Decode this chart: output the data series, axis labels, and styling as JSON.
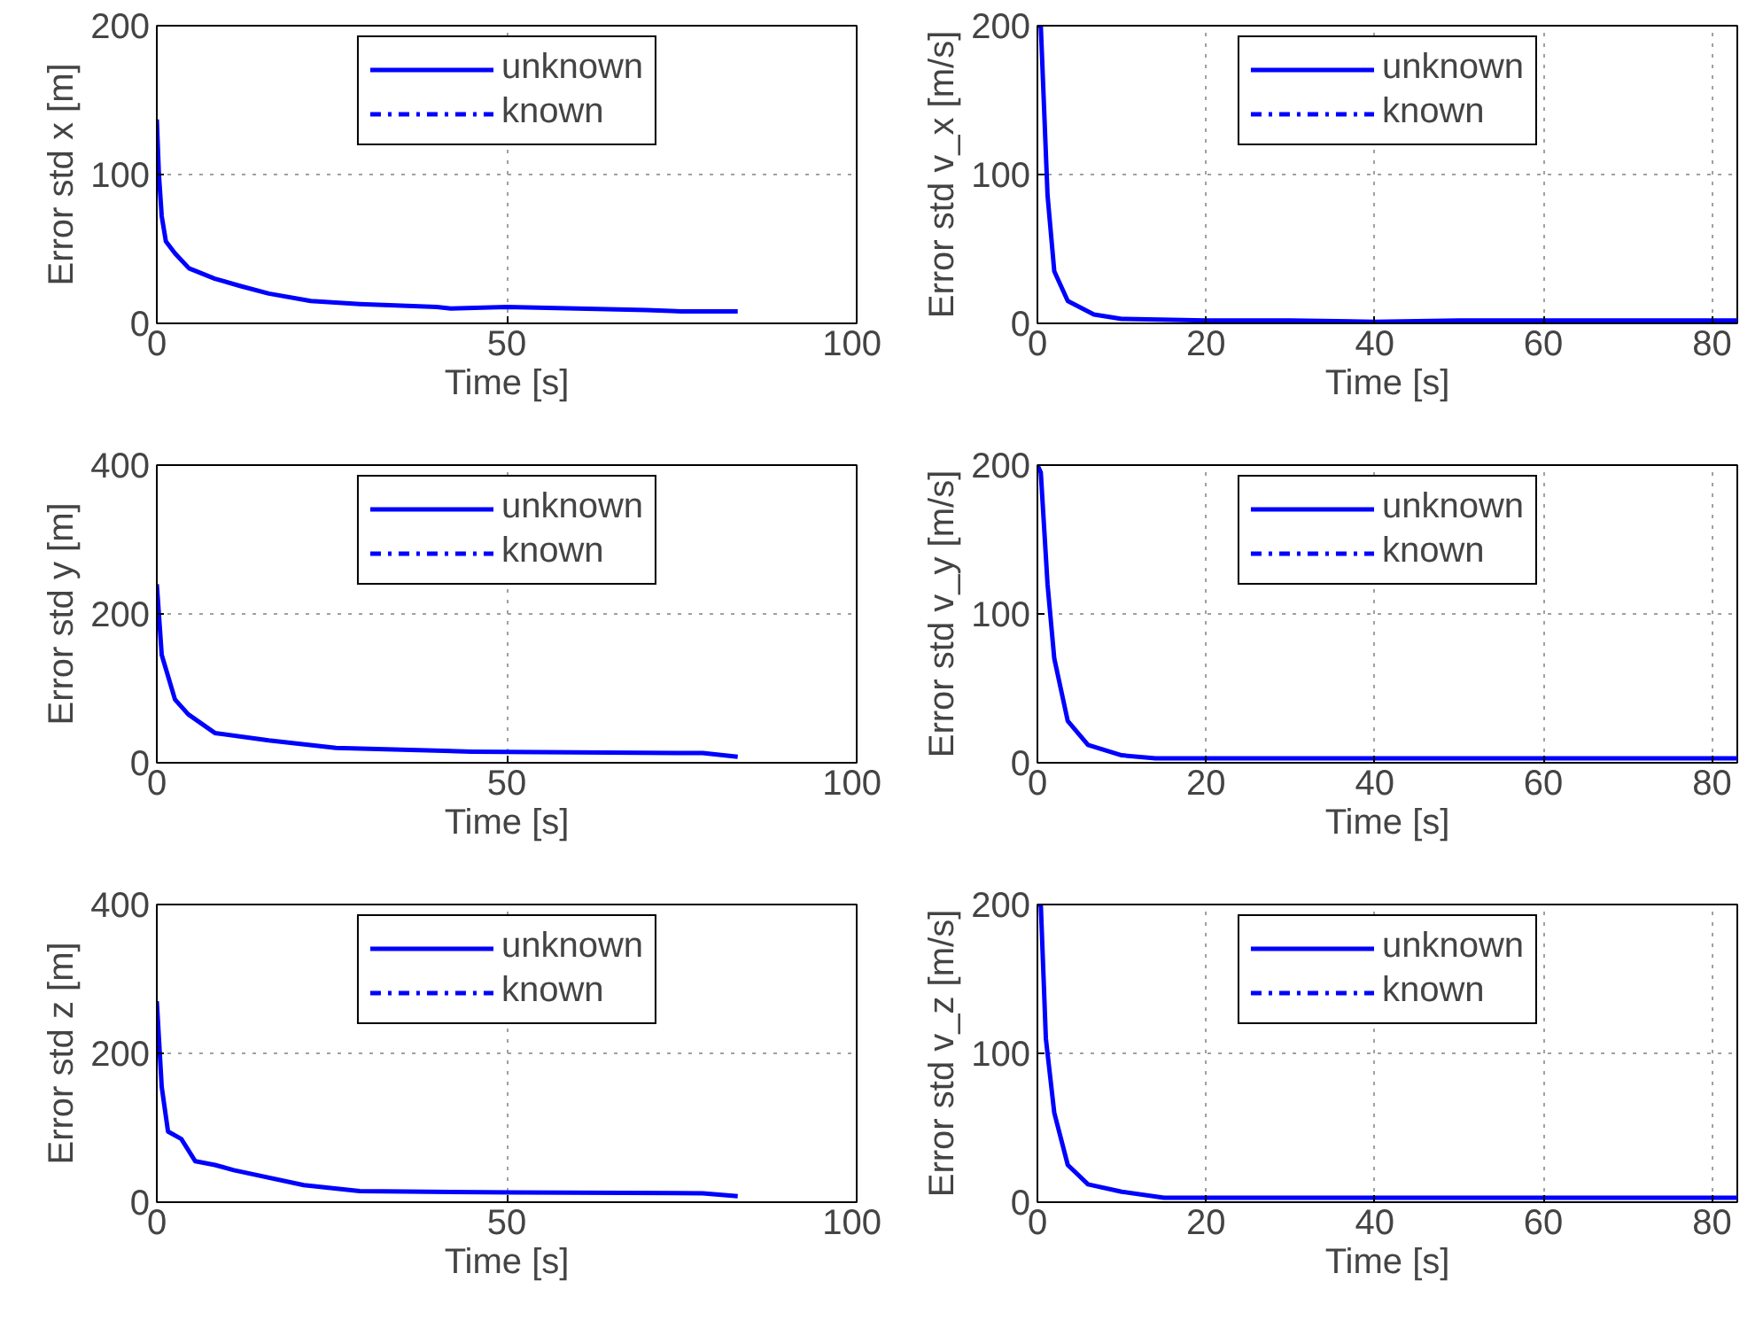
{
  "chart_data": [
    {
      "type": "line",
      "xlabel": "Time [s]",
      "ylabel": "Error std x [m]",
      "xlim": [
        0,
        100
      ],
      "xticks": [
        0,
        50,
        100
      ],
      "ylim": [
        0,
        200
      ],
      "yticks": [
        0,
        100,
        200
      ],
      "grid": true,
      "legend": "top",
      "x": [
        0,
        0.3,
        0.7,
        1.3,
        2.6,
        4.6,
        8.3,
        12,
        16,
        22,
        29,
        40,
        42,
        50,
        60,
        70,
        75,
        80,
        83
      ],
      "series": [
        {
          "name": "unknown",
          "color": "#0000ff",
          "line_style": "solid",
          "values": [
            137,
            100,
            72,
            55,
            47,
            37,
            30,
            25,
            20,
            15,
            13,
            11,
            10,
            11,
            10,
            9,
            8,
            8,
            8
          ]
        },
        {
          "name": "known",
          "color": "#0000ff",
          "line_style": "dashdot",
          "values": [
            null,
            null,
            null,
            null,
            null,
            null,
            null,
            null,
            null,
            null,
            null,
            null,
            null,
            null,
            null,
            null,
            null,
            null,
            null
          ]
        }
      ]
    },
    {
      "type": "line",
      "xlabel": "Time [s]",
      "ylabel": "Error std v_x [m/s]",
      "xlim": [
        0,
        83
      ],
      "xticks": [
        0,
        20,
        40,
        60,
        80
      ],
      "ylim": [
        0,
        200
      ],
      "yticks": [
        0,
        100,
        200
      ],
      "grid": true,
      "legend": "top",
      "x": [
        0,
        0.4,
        1.2,
        2,
        3.6,
        6.7,
        10,
        20,
        30,
        40,
        50,
        60,
        70,
        83
      ],
      "series": [
        {
          "name": "unknown",
          "color": "#0000ff",
          "line_style": "solid",
          "values": [
            200,
            200,
            86,
            35,
            15,
            6,
            3,
            2,
            2,
            1,
            2,
            2,
            2,
            2
          ]
        },
        {
          "name": "known",
          "color": "#0000ff",
          "line_style": "dashdot",
          "values": [
            null,
            null,
            null,
            null,
            null,
            null,
            null,
            null,
            null,
            null,
            null,
            null,
            null,
            null
          ]
        }
      ]
    },
    {
      "type": "line",
      "xlabel": "Time [s]",
      "ylabel": "Error std y [m]",
      "xlim": [
        0,
        100
      ],
      "xticks": [
        0,
        50,
        100
      ],
      "ylim": [
        0,
        400
      ],
      "yticks": [
        0,
        200,
        400
      ],
      "grid": true,
      "legend": "top",
      "x": [
        0,
        0.7,
        2.6,
        4.5,
        8.3,
        16,
        25.6,
        45,
        78,
        83
      ],
      "series": [
        {
          "name": "unknown",
          "color": "#0000ff",
          "line_style": "solid",
          "values": [
            240,
            145,
            85,
            65,
            40,
            30,
            20,
            15,
            13,
            8
          ]
        },
        {
          "name": "known",
          "color": "#0000ff",
          "line_style": "dashdot",
          "values": [
            null,
            null,
            null,
            null,
            null,
            null,
            null,
            null,
            null,
            null
          ]
        }
      ]
    },
    {
      "type": "line",
      "xlabel": "Time [s]",
      "ylabel": "Error std v_y [m/s]",
      "xlim": [
        0,
        83
      ],
      "xticks": [
        0,
        20,
        40,
        60,
        80
      ],
      "ylim": [
        0,
        200
      ],
      "yticks": [
        0,
        100,
        200
      ],
      "grid": true,
      "legend": "top",
      "x": [
        0,
        0.4,
        1.2,
        2,
        3.6,
        6,
        10,
        14,
        83
      ],
      "series": [
        {
          "name": "unknown",
          "color": "#0000ff",
          "line_style": "solid",
          "values": [
            200,
            195,
            120,
            70,
            28,
            12,
            5,
            3,
            3
          ]
        },
        {
          "name": "known",
          "color": "#0000ff",
          "line_style": "dashdot",
          "values": [
            null,
            null,
            null,
            null,
            null,
            null,
            null,
            null,
            null
          ]
        }
      ]
    },
    {
      "type": "line",
      "xlabel": "Time [s]",
      "ylabel": "Error std z [m]",
      "xlim": [
        0,
        100
      ],
      "xticks": [
        0,
        50,
        100
      ],
      "ylim": [
        0,
        400
      ],
      "yticks": [
        0,
        200,
        400
      ],
      "grid": true,
      "legend": "top",
      "x": [
        0,
        0.7,
        1.6,
        3.5,
        5.5,
        8.3,
        11,
        21,
        29,
        51,
        78,
        83
      ],
      "series": [
        {
          "name": "unknown",
          "color": "#0000ff",
          "line_style": "solid",
          "values": [
            270,
            155,
            95,
            85,
            55,
            50,
            43,
            23,
            15,
            13,
            12,
            8
          ]
        },
        {
          "name": "known",
          "color": "#0000ff",
          "line_style": "dashdot",
          "values": [
            null,
            null,
            null,
            null,
            null,
            null,
            null,
            null,
            null,
            null,
            null,
            null
          ]
        }
      ]
    },
    {
      "type": "line",
      "xlabel": "Time [s]",
      "ylabel": "Error std v_z [m/s]",
      "xlim": [
        0,
        83
      ],
      "xticks": [
        0,
        20,
        40,
        60,
        80
      ],
      "ylim": [
        0,
        200
      ],
      "yticks": [
        0,
        100,
        200
      ],
      "grid": true,
      "legend": "top",
      "x": [
        0,
        0.4,
        1,
        2,
        3.6,
        6,
        10,
        15,
        83
      ],
      "series": [
        {
          "name": "unknown",
          "color": "#0000ff",
          "line_style": "solid",
          "values": [
            200,
            200,
            110,
            60,
            25,
            12,
            7,
            3,
            3
          ]
        },
        {
          "name": "known",
          "color": "#0000ff",
          "line_style": "dashdot",
          "values": [
            null,
            null,
            null,
            null,
            null,
            null,
            null,
            null,
            null
          ]
        }
      ]
    }
  ]
}
